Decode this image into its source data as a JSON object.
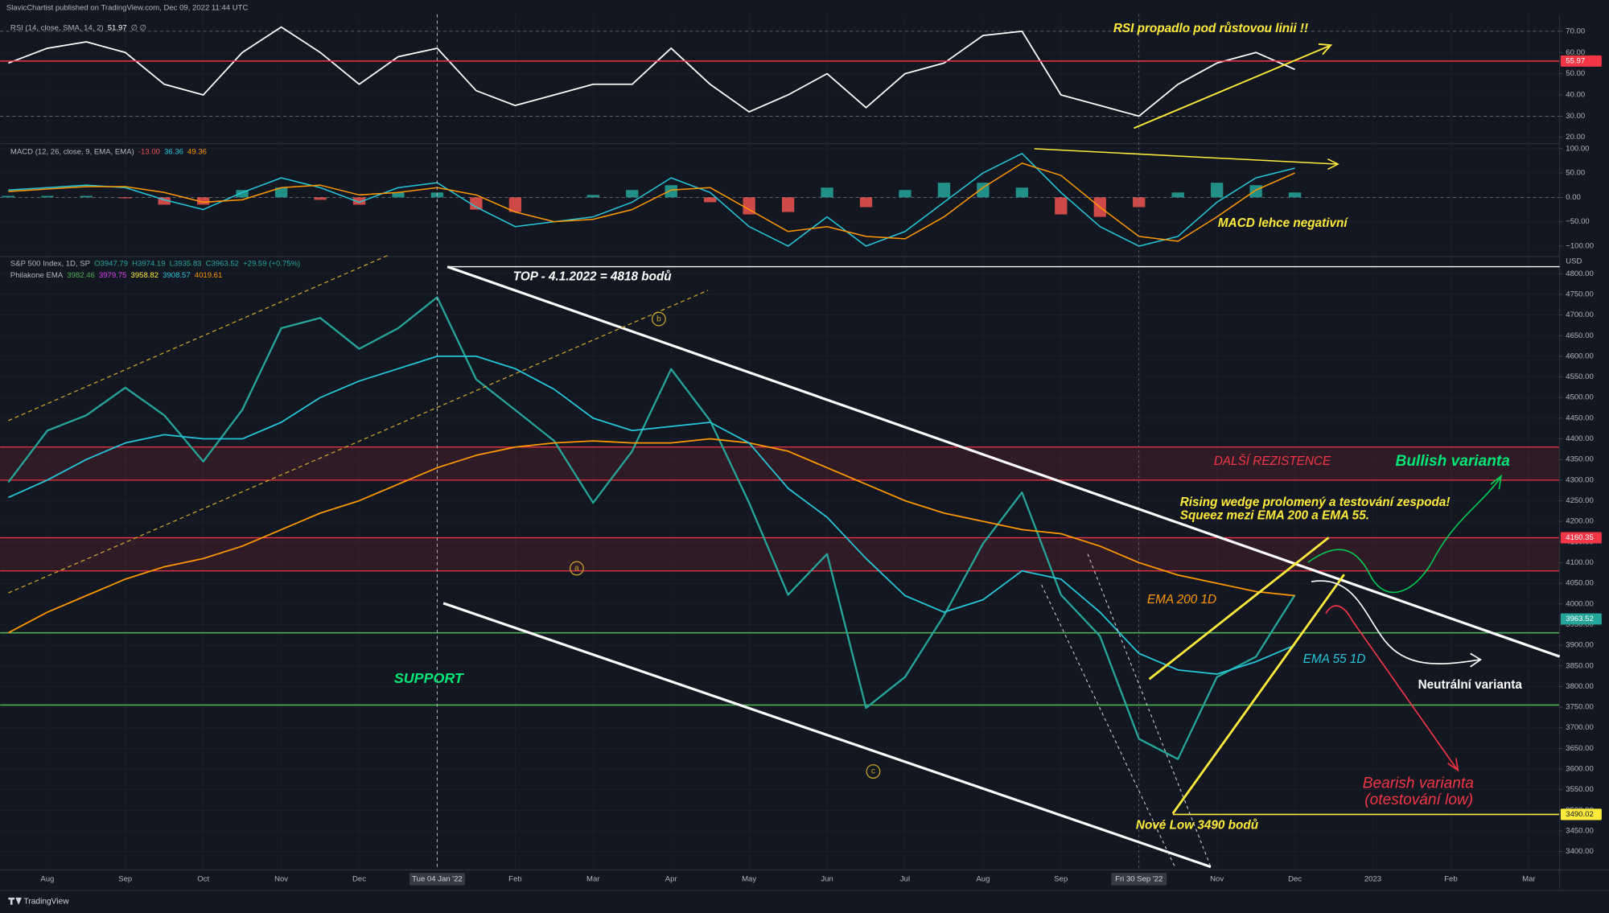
{
  "page": {
    "published": "SlavicChartist published on TradingView.com, Dec 09, 2022 11:44 UTC",
    "brand": "TradingView"
  },
  "chart_data": [
    {
      "type": "line",
      "header": [
        [
          "RSI (14, close, SMA, 14, 2)",
          "51.97",
          "∅ ∅"
        ]
      ],
      "header_colors": [
        [
          "#b2b5be",
          "#ffffff",
          "#b2b5be"
        ]
      ],
      "ylim": [
        18,
        77
      ],
      "yticks": [
        {
          "value": 70,
          "label": "70.00"
        },
        {
          "value": 60,
          "label": "60.00"
        },
        {
          "value": 50,
          "label": "50.00"
        },
        {
          "value": 40,
          "label": "40.00"
        },
        {
          "value": 30,
          "label": "30.00"
        },
        {
          "value": 20,
          "label": "20.00"
        }
      ],
      "guides": [
        70,
        30
      ],
      "level": {
        "value": 55.97,
        "color": "#f23645"
      },
      "series": [
        {
          "color": "#ffffff",
          "values": [
            55,
            62,
            65,
            60,
            45,
            40,
            60,
            72,
            60,
            45,
            58,
            62,
            42,
            35,
            40,
            45,
            45,
            62,
            45,
            32,
            40,
            50,
            34,
            50,
            55,
            68,
            70,
            40,
            35,
            30,
            45,
            55,
            60,
            52,
            null,
            null,
            null,
            null,
            null,
            null
          ]
        }
      ],
      "annotations": [
        "RSI propadlo pod růstovou linii !!"
      ]
    },
    {
      "type": "macd",
      "header": [
        [
          "MACD (12, 26, close, 9, EMA, EMA)",
          "-13.00",
          "36.36",
          "49.36"
        ]
      ],
      "header_colors": [
        [
          "#b2b5be",
          "#ef5350",
          "#26c6da",
          "#ff9800"
        ]
      ],
      "ylim": [
        -117,
        106
      ],
      "yticks": [
        {
          "value": 100,
          "label": "100.00"
        },
        {
          "value": 50,
          "label": "50.00"
        },
        {
          "value": 0,
          "label": "0.00"
        },
        {
          "value": -50,
          "label": "−50.00"
        },
        {
          "value": -100,
          "label": "−100.00"
        }
      ],
      "guides": [
        0
      ],
      "histogram": {
        "up_color": "#26a69a",
        "down_color": "#ef5350",
        "values": [
          3,
          3,
          3,
          -2,
          -15,
          -15,
          15,
          20,
          -5,
          -15,
          10,
          10,
          -25,
          -30,
          0,
          5,
          15,
          25,
          -10,
          -35,
          -30,
          20,
          -20,
          15,
          30,
          30,
          20,
          -35,
          -40,
          -20,
          10,
          30,
          25,
          10,
          null,
          null,
          null,
          null,
          null,
          null
        ]
      },
      "series": [
        {
          "color": "#26c6da",
          "values": [
            15,
            20,
            25,
            20,
            -5,
            -25,
            10,
            40,
            20,
            -10,
            20,
            30,
            -20,
            -60,
            -50,
            -40,
            -10,
            40,
            10,
            -60,
            -100,
            -40,
            -100,
            -70,
            -10,
            50,
            90,
            10,
            -60,
            -100,
            -80,
            -10,
            40,
            60,
            null,
            null,
            null,
            null,
            null,
            null
          ]
        },
        {
          "color": "#ff9800",
          "values": [
            12,
            17,
            22,
            22,
            10,
            -10,
            -5,
            20,
            25,
            5,
            10,
            20,
            5,
            -30,
            -50,
            -45,
            -25,
            15,
            20,
            -25,
            -70,
            -60,
            -80,
            -85,
            -40,
            20,
            70,
            45,
            -20,
            -80,
            -90,
            -40,
            15,
            50,
            null,
            null,
            null,
            null,
            null,
            null
          ]
        }
      ],
      "annotations": [
        "MACD lehce negativní"
      ]
    },
    {
      "type": "line",
      "header": [
        [
          "S&P 500 Index, 1D, SP",
          "O3947.79",
          "H3974.19",
          "L3935.83",
          "C3963.52",
          "+29.59 (+0.75%)"
        ],
        [
          "Philakone EMA",
          "3982.46",
          "3979.75",
          "3958.82",
          "3908.57",
          "4019.61"
        ]
      ],
      "header_colors": [
        [
          "#b2b5be",
          "#26a69a",
          "#26a69a",
          "#26a69a",
          "#26a69a",
          "#26a69a"
        ],
        [
          "#b2b5be",
          "#4caf50",
          "#e040fb",
          "#ffeb3b",
          "#26c6da",
          "#ff9800"
        ]
      ],
      "currency": "USD",
      "categories": [
        null,
        "Aug",
        null,
        "Sep",
        null,
        "Oct",
        null,
        "Nov",
        null,
        "Dec",
        null,
        "Tue 04 Jan '22",
        null,
        "Feb",
        null,
        "Mar",
        null,
        "Apr",
        null,
        "May",
        null,
        "Jun",
        null,
        "Jul",
        null,
        "Aug",
        null,
        "Sep",
        null,
        "Fri 30 Sep '22",
        null,
        "Nov",
        null,
        "Dec",
        null,
        "2023",
        null,
        "Feb",
        null,
        "Mar"
      ],
      "ylim": [
        3363,
        4812
      ],
      "yticks": [
        {
          "value": 3400,
          "label": "3400.00"
        },
        {
          "value": 3450,
          "label": "3450.00"
        },
        {
          "value": 3500,
          "label": "3500.00"
        },
        {
          "value": 3550,
          "label": "3550.00"
        },
        {
          "value": 3600,
          "label": "3600.00"
        },
        {
          "value": 3650,
          "label": "3650.00"
        },
        {
          "value": 3700,
          "label": "3700.00"
        },
        {
          "value": 3750,
          "label": "3750.00"
        },
        {
          "value": 3800,
          "label": "3800.00"
        },
        {
          "value": 3850,
          "label": "3850.00"
        },
        {
          "value": 3900,
          "label": "3900.00"
        },
        {
          "value": 3950,
          "label": "3950.00"
        },
        {
          "value": 4000,
          "label": "4000.00"
        },
        {
          "value": 4050,
          "label": "4050.00"
        },
        {
          "value": 4100,
          "label": "4100.00"
        },
        {
          "value": 4150,
          "label": "4150.00"
        },
        {
          "value": 4200,
          "label": "4200.00"
        },
        {
          "value": 4250,
          "label": "4250.00"
        },
        {
          "value": 4300,
          "label": "4300.00"
        },
        {
          "value": 4350,
          "label": "4350.00"
        },
        {
          "value": 4400,
          "label": "4400.00"
        },
        {
          "value": 4450,
          "label": "4450.00"
        },
        {
          "value": 4500,
          "label": "4500.00"
        },
        {
          "value": 4550,
          "label": "4550.00"
        },
        {
          "value": 4600,
          "label": "4600.00"
        },
        {
          "value": 4650,
          "label": "4650.00"
        },
        {
          "value": 4700,
          "label": "4700.00"
        },
        {
          "value": 4750,
          "label": "4750.00"
        },
        {
          "value": 4800,
          "label": "4800.00"
        }
      ],
      "zones": [
        {
          "from": 4300,
          "to": 4380,
          "color": "#f23645"
        },
        {
          "from": 4080,
          "to": 4160.35,
          "color": "#f23645"
        }
      ],
      "lines": [
        {
          "value": 3930,
          "color": "#4caf50"
        },
        {
          "value": 3755,
          "color": "#4caf50"
        }
      ],
      "price_labels": [
        {
          "value": 4160.35,
          "color": "#f23645"
        },
        {
          "value": 3963.52,
          "color": "#26a69a"
        },
        {
          "value": 3490.02,
          "color": "#ffeb3b",
          "line": true
        }
      ],
      "series": [
        {
          "color": "#26a69a",
          "values": [
            4295,
            4420,
            4457,
            4524,
            4457,
            4345,
            4470,
            4668,
            4693,
            4618,
            4668,
            4743,
            4544,
            4470,
            4395,
            4245,
            4370,
            4569,
            4444,
            4245,
            4022,
            4121,
            3748,
            3823,
            3972,
            4146,
            4270,
            4022,
            3922,
            3673,
            3624,
            3823,
            3872,
            4022,
            null,
            null,
            null,
            null,
            null,
            null
          ]
        },
        {
          "color": "#ff9800",
          "values": [
            3930,
            3980,
            4020,
            4060,
            4090,
            4110,
            4140,
            4180,
            4220,
            4250,
            4290,
            4330,
            4360,
            4380,
            4390,
            4395,
            4390,
            4390,
            4400,
            4390,
            4370,
            4330,
            4290,
            4250,
            4220,
            4200,
            4180,
            4170,
            4140,
            4100,
            4070,
            4050,
            4030,
            4020,
            null,
            null,
            null,
            null,
            null,
            null
          ]
        },
        {
          "color": "#26c6da",
          "values": [
            4258,
            4300,
            4350,
            4390,
            4410,
            4400,
            4400,
            4440,
            4500,
            4540,
            4570,
            4600,
            4600,
            4570,
            4520,
            4450,
            4420,
            4430,
            4440,
            4390,
            4280,
            4210,
            4110,
            4020,
            3980,
            4010,
            4080,
            4060,
            3980,
            3880,
            3840,
            3830,
            3860,
            3900,
            null,
            null,
            null,
            null,
            null,
            null
          ]
        }
      ],
      "annotations": [
        "TOP - 4.1.2022 = 4818 bodů",
        "DALŠÍ REZISTENCE",
        "Bullish varianta",
        "Rising wedge prolomený a testování zespoda!",
        "Squeez mezi EMA 200 a EMA 55.",
        "EMA 200 1D",
        "EMA 55 1D",
        "Neutrální varianta",
        "Bearish varianta",
        "(otestování low)",
        "Nové Low 3490 bodů",
        "SUPPORT",
        "a",
        "b",
        "c"
      ]
    }
  ]
}
